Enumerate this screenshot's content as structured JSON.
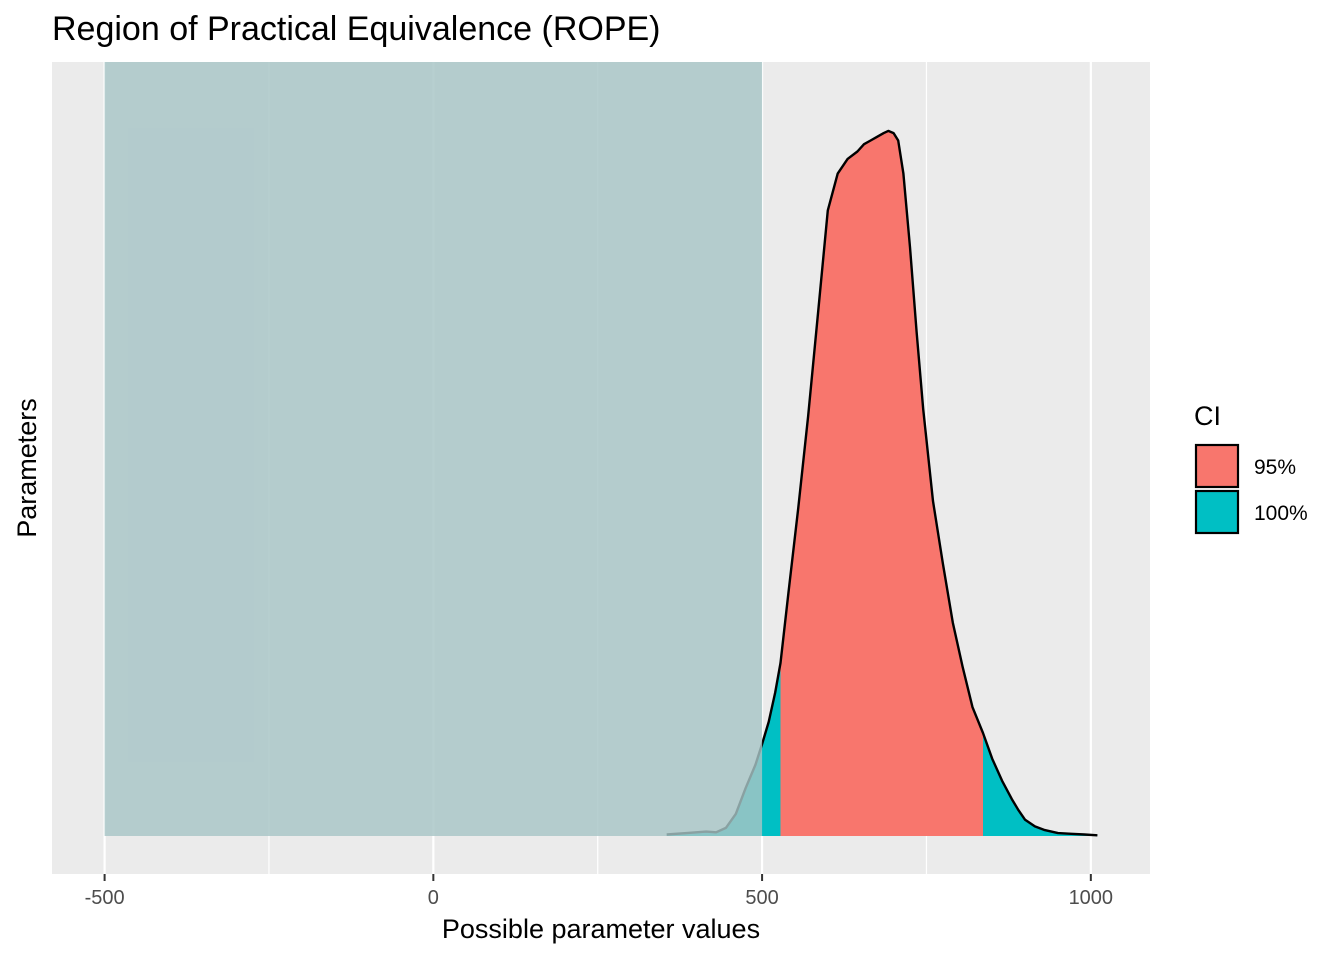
{
  "chart_data": {
    "type": "area",
    "title": "Region of Practical Equivalence (ROPE)",
    "xlabel": "Possible parameter values",
    "ylabel": "Parameters",
    "xlim": [
      -580,
      1090
    ],
    "xticks": [
      -500,
      0,
      500,
      1000
    ],
    "xtick_labels": [
      "-500",
      "0",
      "500",
      "1000"
    ],
    "ylim": [
      0,
      1
    ],
    "grid": true,
    "rope": {
      "range": [
        -500,
        500
      ],
      "color": "#a7c4c6"
    },
    "ci": {
      "level": "95%",
      "range": [
        528,
        836
      ]
    },
    "density": {
      "x": [
        355,
        385,
        400,
        415,
        430,
        445,
        460,
        475,
        490,
        500,
        510,
        520,
        528,
        540,
        555,
        570,
        585,
        600,
        615,
        630,
        645,
        655,
        665,
        675,
        685,
        692,
        700,
        707,
        715,
        725,
        735,
        745,
        760,
        775,
        790,
        805,
        820,
        836,
        850,
        865,
        880,
        890,
        900,
        915,
        930,
        950,
        970,
        990,
        1010
      ],
      "y": [
        0.002,
        0.004,
        0.005,
        0.006,
        0.005,
        0.011,
        0.03,
        0.065,
        0.097,
        0.125,
        0.155,
        0.195,
        0.235,
        0.33,
        0.445,
        0.57,
        0.71,
        0.85,
        0.9,
        0.92,
        0.93,
        0.94,
        0.945,
        0.95,
        0.955,
        0.958,
        0.955,
        0.945,
        0.9,
        0.8,
        0.685,
        0.58,
        0.455,
        0.37,
        0.29,
        0.23,
        0.175,
        0.14,
        0.105,
        0.075,
        0.05,
        0.035,
        0.022,
        0.013,
        0.008,
        0.004,
        0.003,
        0.002,
        0.001
      ]
    },
    "legend": {
      "title": "CI",
      "position": "right",
      "items": [
        {
          "label": "95%",
          "color": "#f8766d"
        },
        {
          "label": "100%",
          "color": "#00bfc4"
        }
      ]
    }
  }
}
